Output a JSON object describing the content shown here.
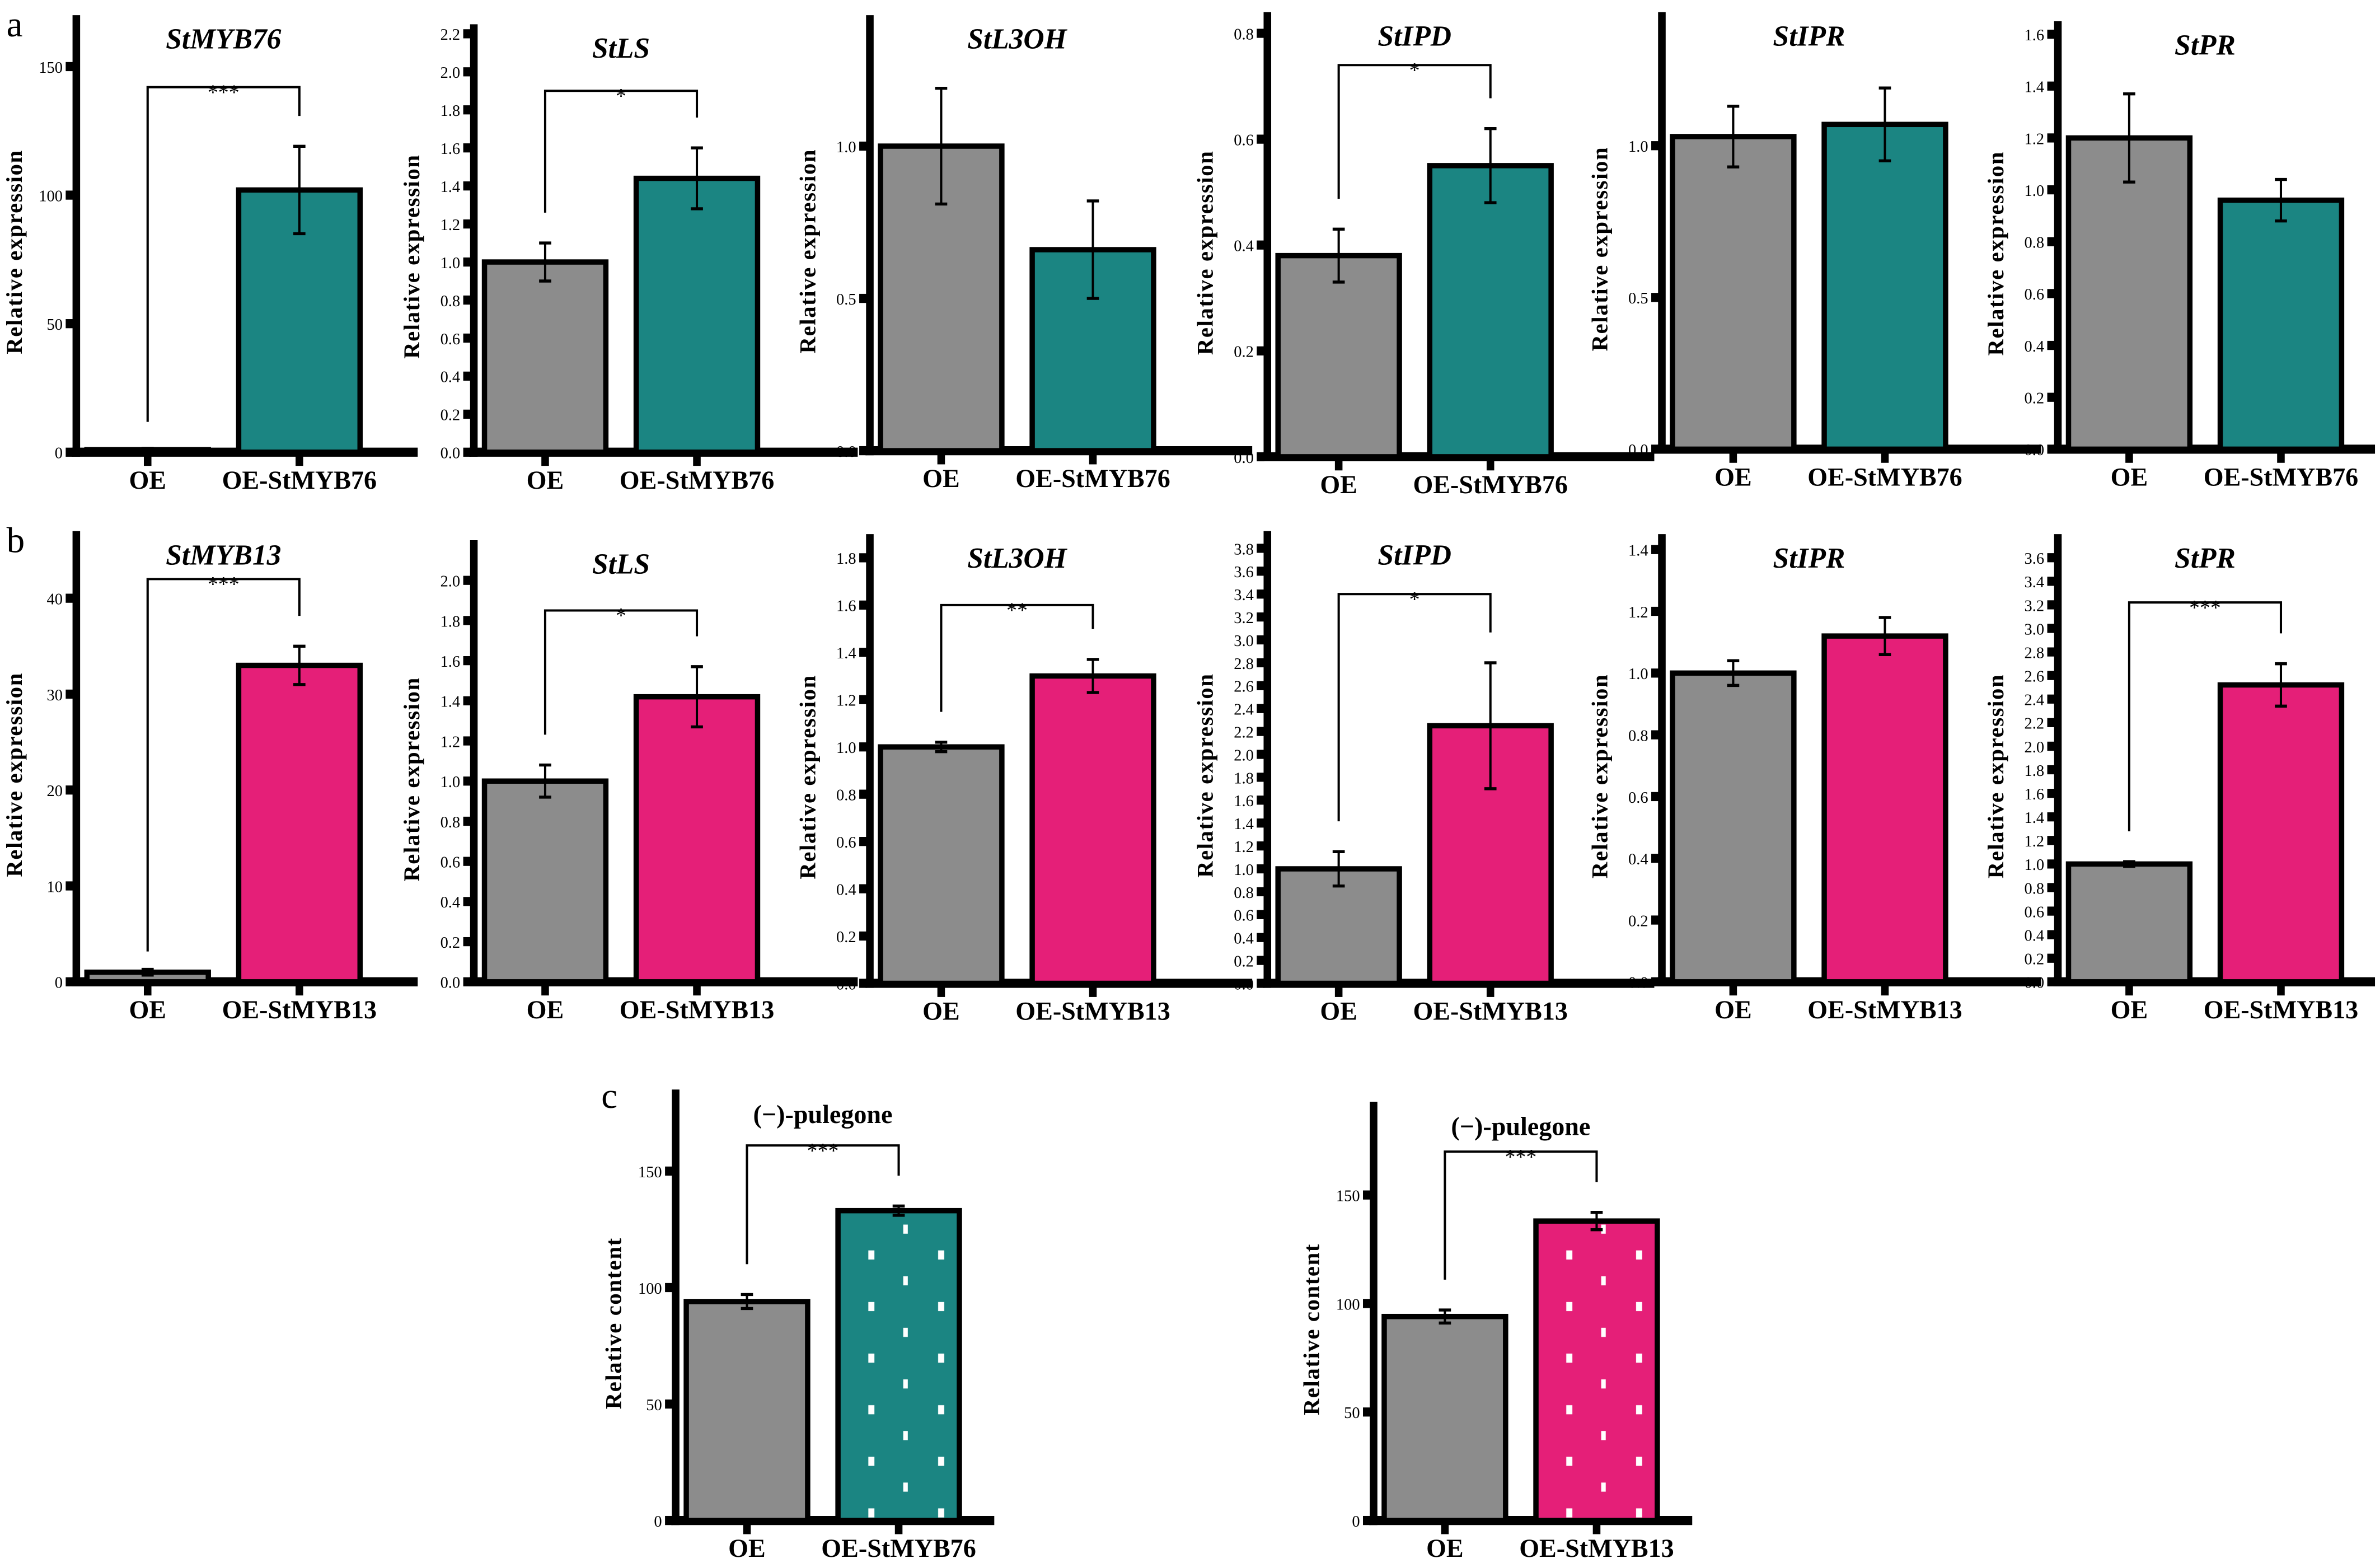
{
  "colors": {
    "control": "#8c8c8c",
    "StMYB76": "#1b8582",
    "StMYB13": "#e51f78",
    "outline": "#000000",
    "dots": "#ffffff"
  },
  "panel_labels": [
    "a",
    "b",
    "c"
  ],
  "chart_data": [
    {
      "panel": "a",
      "type": "bar",
      "title": "StMYB76",
      "italic": true,
      "ylabel": "Relative expression",
      "categories": [
        "OE",
        "OE-StMYB76"
      ],
      "values": [
        1,
        102
      ],
      "errors": [
        0.5,
        17
      ],
      "ylim": [
        0,
        170
      ],
      "yticks": [
        0,
        50,
        100,
        150
      ],
      "tick_format": "int",
      "significance": "***",
      "sig_level": 142,
      "fill": [
        "control",
        "StMYB76"
      ]
    },
    {
      "panel": "a",
      "type": "bar",
      "title": "StLS",
      "italic": true,
      "ylabel": "Relative expression",
      "categories": [
        "OE",
        "OE-StMYB76"
      ],
      "values": [
        1.0,
        1.44
      ],
      "errors": [
        0.1,
        0.16
      ],
      "ylim": [
        0,
        2.25
      ],
      "yticks": [
        0,
        0.2,
        0.4,
        0.6,
        0.8,
        1.0,
        1.2,
        1.4,
        1.6,
        1.8,
        2.0,
        2.2
      ],
      "tick_format": "1",
      "significance": "*",
      "sig_level": 1.9,
      "fill": [
        "control",
        "StMYB76"
      ]
    },
    {
      "panel": "a",
      "type": "bar",
      "title": "StL3OH",
      "italic": true,
      "ylabel": "Relative expression",
      "categories": [
        "OE",
        "OE-StMYB76"
      ],
      "values": [
        1.0,
        0.66
      ],
      "errors": [
        0.19,
        0.16
      ],
      "ylim": [
        0,
        1.43
      ],
      "yticks": [
        0,
        0.5,
        1.0
      ],
      "tick_format": "1",
      "significance": "",
      "fill": [
        "control",
        "StMYB76"
      ]
    },
    {
      "panel": "a",
      "type": "bar",
      "title": "StIPD",
      "italic": true,
      "ylabel": "Relative expression",
      "categories": [
        "OE",
        "OE-StMYB76"
      ],
      "values": [
        0.38,
        0.55
      ],
      "errors": [
        0.05,
        0.07
      ],
      "ylim": [
        0,
        0.84
      ],
      "yticks": [
        0,
        0.2,
        0.4,
        0.6,
        0.8
      ],
      "tick_format": "1",
      "significance": "*",
      "sig_level": 0.74,
      "fill": [
        "control",
        "StMYB76"
      ]
    },
    {
      "panel": "a",
      "type": "bar",
      "title": "StIPR",
      "italic": true,
      "ylabel": "Relative expression",
      "categories": [
        "OE",
        "OE-StMYB76"
      ],
      "values": [
        1.03,
        1.07
      ],
      "errors": [
        0.1,
        0.12
      ],
      "ylim": [
        0,
        1.44
      ],
      "yticks": [
        0,
        0.5,
        1.0
      ],
      "tick_format": "1",
      "significance": "",
      "fill": [
        "control",
        "StMYB76"
      ]
    },
    {
      "panel": "a",
      "type": "bar",
      "title": "StPR",
      "italic": true,
      "ylabel": "Relative expression",
      "categories": [
        "OE",
        "OE-StMYB76"
      ],
      "values": [
        1.2,
        0.96
      ],
      "errors": [
        0.17,
        0.08
      ],
      "ylim": [
        0,
        1.65
      ],
      "yticks": [
        0,
        0.2,
        0.4,
        0.6,
        0.8,
        1.0,
        1.2,
        1.4,
        1.6
      ],
      "tick_format": "1",
      "significance": "",
      "fill": [
        "control",
        "StMYB76"
      ]
    },
    {
      "panel": "b",
      "type": "bar",
      "title": "StMYB13",
      "italic": true,
      "ylabel": "Relative expression",
      "categories": [
        "OE",
        "OE-StMYB13"
      ],
      "values": [
        1,
        33
      ],
      "errors": [
        0.3,
        2
      ],
      "ylim": [
        0,
        47
      ],
      "yticks": [
        0,
        10,
        20,
        30,
        40
      ],
      "tick_format": "int",
      "significance": "***",
      "sig_level": 42,
      "fill": [
        "control",
        "StMYB13"
      ]
    },
    {
      "panel": "b",
      "type": "bar",
      "title": "StLS",
      "italic": true,
      "ylabel": "Relative expression",
      "categories": [
        "OE",
        "OE-StMYB13"
      ],
      "values": [
        1.0,
        1.42
      ],
      "errors": [
        0.08,
        0.15
      ],
      "ylim": [
        0,
        2.2
      ],
      "yticks": [
        0,
        0.2,
        0.4,
        0.6,
        0.8,
        1.0,
        1.2,
        1.4,
        1.6,
        1.8,
        2.0
      ],
      "tick_format": "1",
      "significance": "*",
      "sig_level": 1.85,
      "fill": [
        "control",
        "StMYB13"
      ]
    },
    {
      "panel": "b",
      "type": "bar",
      "title": "StL3OH",
      "italic": true,
      "ylabel": "Relative expression",
      "categories": [
        "OE",
        "OE-StMYB13"
      ],
      "values": [
        1.0,
        1.3
      ],
      "errors": [
        0.02,
        0.07
      ],
      "ylim": [
        0,
        1.9
      ],
      "yticks": [
        0,
        0.2,
        0.4,
        0.6,
        0.8,
        1.0,
        1.2,
        1.4,
        1.6,
        1.8
      ],
      "tick_format": "1",
      "significance": "**",
      "sig_level": 1.6,
      "fill": [
        "control",
        "StMYB13"
      ]
    },
    {
      "panel": "b",
      "type": "bar",
      "title": "StIPD",
      "italic": true,
      "ylabel": "Relative expression",
      "categories": [
        "OE",
        "OE-StMYB13"
      ],
      "values": [
        1.0,
        2.25
      ],
      "errors": [
        0.15,
        0.55
      ],
      "ylim": [
        0,
        3.95
      ],
      "yticks": [
        0,
        0.2,
        0.4,
        0.6,
        0.8,
        1.0,
        1.2,
        1.4,
        1.6,
        1.8,
        2.0,
        2.2,
        2.4,
        2.6,
        2.8,
        3.0,
        3.2,
        3.4,
        3.6,
        3.8
      ],
      "tick_format": "1",
      "significance": "*",
      "sig_level": 3.4,
      "fill": [
        "control",
        "StMYB13"
      ]
    },
    {
      "panel": "b",
      "type": "bar",
      "title": "StIPR",
      "italic": true,
      "ylabel": "Relative expression",
      "categories": [
        "OE",
        "OE-StMYB13"
      ],
      "values": [
        1.0,
        1.12
      ],
      "errors": [
        0.04,
        0.06
      ],
      "ylim": [
        0,
        1.45
      ],
      "yticks": [
        0,
        0.2,
        0.4,
        0.6,
        0.8,
        1.0,
        1.2,
        1.4
      ],
      "tick_format": "1",
      "significance": "",
      "fill": [
        "control",
        "StMYB13"
      ]
    },
    {
      "panel": "b",
      "type": "bar",
      "title": "StPR",
      "italic": true,
      "ylabel": "Relative expression",
      "categories": [
        "OE",
        "OE-StMYB13"
      ],
      "values": [
        1.0,
        2.52
      ],
      "errors": [
        0.02,
        0.18
      ],
      "ylim": [
        0,
        3.8
      ],
      "yticks": [
        0,
        0.2,
        0.4,
        0.6,
        0.8,
        1.0,
        1.2,
        1.4,
        1.6,
        1.8,
        2.0,
        2.2,
        2.4,
        2.6,
        2.8,
        3.0,
        3.2,
        3.4,
        3.6
      ],
      "tick_format": "1",
      "significance": "***",
      "sig_level": 3.22,
      "fill": [
        "control",
        "StMYB13"
      ]
    },
    {
      "panel": "c",
      "type": "bar",
      "title": "(−)-pulegone",
      "italic": false,
      "ylabel": "Relative content",
      "categories": [
        "OE",
        "OE-StMYB76"
      ],
      "values": [
        94,
        133
      ],
      "errors": [
        3,
        2
      ],
      "ylim": [
        0,
        185
      ],
      "yticks": [
        0,
        50,
        100,
        150
      ],
      "tick_format": "int",
      "significance": "***",
      "sig_level": 161,
      "fill": [
        "control",
        "StMYB76"
      ],
      "dotted": [
        false,
        true
      ]
    },
    {
      "panel": "c",
      "type": "bar",
      "title": "(−)-pulegone",
      "italic": false,
      "ylabel": "Relative content",
      "categories": [
        "OE",
        "OE-StMYB13"
      ],
      "values": [
        94,
        138
      ],
      "errors": [
        3,
        4
      ],
      "ylim": [
        0,
        193
      ],
      "yticks": [
        0,
        50,
        100,
        150
      ],
      "tick_format": "int",
      "significance": "***",
      "sig_level": 170,
      "fill": [
        "control",
        "StMYB13"
      ],
      "dotted": [
        false,
        true
      ]
    }
  ]
}
